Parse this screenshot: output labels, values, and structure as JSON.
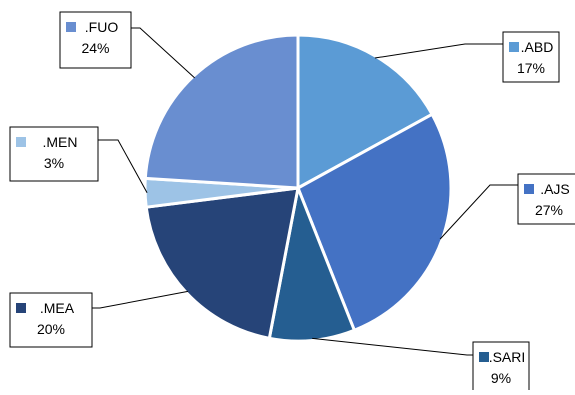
{
  "chart_data": {
    "type": "pie",
    "title": "",
    "slices": [
      {
        "label": ".ABD",
        "value": 17,
        "value_label": "17%",
        "color": "#5B9BD5"
      },
      {
        "label": ".AJS",
        "value": 27,
        "value_label": "27%",
        "color": "#4472C4"
      },
      {
        "label": ".SARI",
        "value": 9,
        "value_label": "9%",
        "color": "#255E91"
      },
      {
        "label": ".MEA",
        "value": 20,
        "value_label": "20%",
        "color": "#264478"
      },
      {
        "label": ".MEN",
        "value": 3,
        "value_label": "3%",
        "color": "#9DC3E6"
      },
      {
        "label": ".FUO",
        "value": 24,
        "value_label": "24%",
        "color": "#698ED0"
      }
    ],
    "start_angle_deg": 0,
    "direction": "clockwise",
    "legend": "none",
    "data_labels": "callouts with leader lines"
  }
}
